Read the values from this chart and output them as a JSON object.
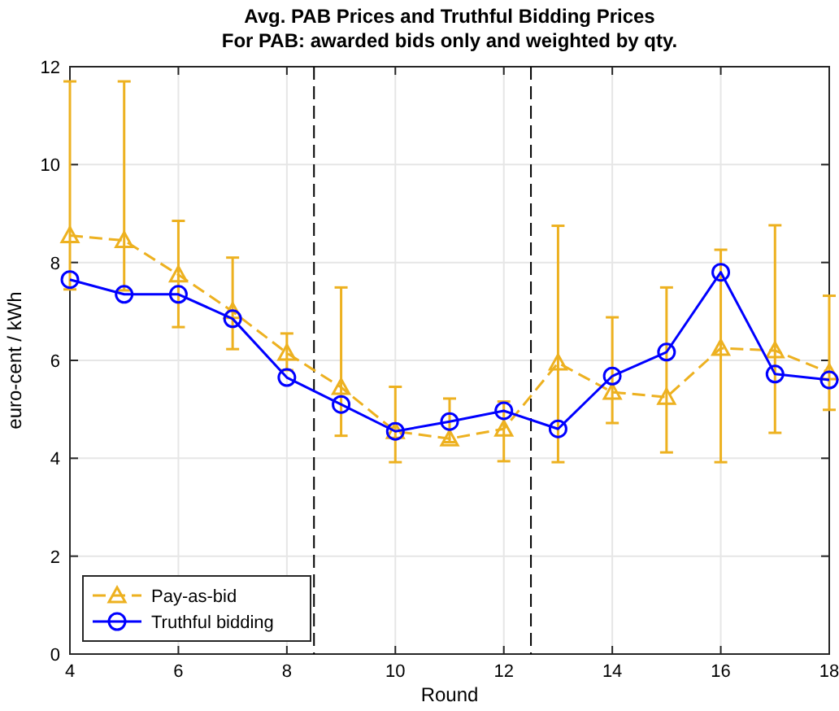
{
  "chart_data": {
    "type": "line",
    "title": "Avg. PAB Prices and Truthful Bidding Prices",
    "subtitle": "For PAB: awarded bids only and weighted by qty.",
    "xlabel": "Round",
    "ylabel": "euro-cent / kWh",
    "x": [
      4,
      5,
      6,
      7,
      8,
      9,
      10,
      11,
      12,
      13,
      14,
      15,
      16,
      17,
      18
    ],
    "series": [
      {
        "name": "Pay-as-bid",
        "color": "#edb120",
        "marker": "triangle",
        "line_style": "dashed",
        "values": [
          8.55,
          8.45,
          7.75,
          7.0,
          6.15,
          5.45,
          4.55,
          4.4,
          4.6,
          5.95,
          5.35,
          5.25,
          6.25,
          6.2,
          5.75
        ],
        "errors": [
          [
            7.45,
            11.7
          ],
          [
            7.43,
            11.7
          ],
          [
            6.68,
            8.85
          ],
          [
            6.23,
            8.1
          ],
          [
            5.8,
            6.55
          ],
          [
            4.46,
            7.49
          ],
          [
            3.92,
            5.46
          ],
          [
            4.33,
            5.22
          ],
          [
            3.94,
            5.16
          ],
          [
            3.92,
            8.75
          ],
          [
            4.72,
            6.88
          ],
          [
            4.12,
            7.49
          ],
          [
            3.92,
            8.26
          ],
          [
            4.52,
            8.76
          ],
          [
            4.99,
            7.32
          ]
        ]
      },
      {
        "name": "Truthful bidding",
        "color": "#0000ff",
        "marker": "circle",
        "line_style": "solid",
        "values": [
          7.65,
          7.35,
          7.35,
          6.85,
          5.65,
          5.1,
          4.55,
          4.75,
          4.97,
          4.6,
          5.68,
          6.17,
          7.8,
          5.72,
          5.6
        ]
      }
    ],
    "xlim": [
      4,
      18
    ],
    "xticks": [
      4,
      6,
      8,
      10,
      12,
      14,
      16,
      18
    ],
    "ylim": [
      0,
      12
    ],
    "yticks": [
      0,
      2,
      4,
      6,
      8,
      10,
      12
    ],
    "ref_lines": [
      {
        "axis": "x",
        "value": 8.5,
        "color": "#000000",
        "line_style": "dashed"
      },
      {
        "axis": "x",
        "value": 12.5,
        "color": "#000000",
        "line_style": "dashed"
      }
    ],
    "grid": true,
    "legend": "bottom left"
  }
}
